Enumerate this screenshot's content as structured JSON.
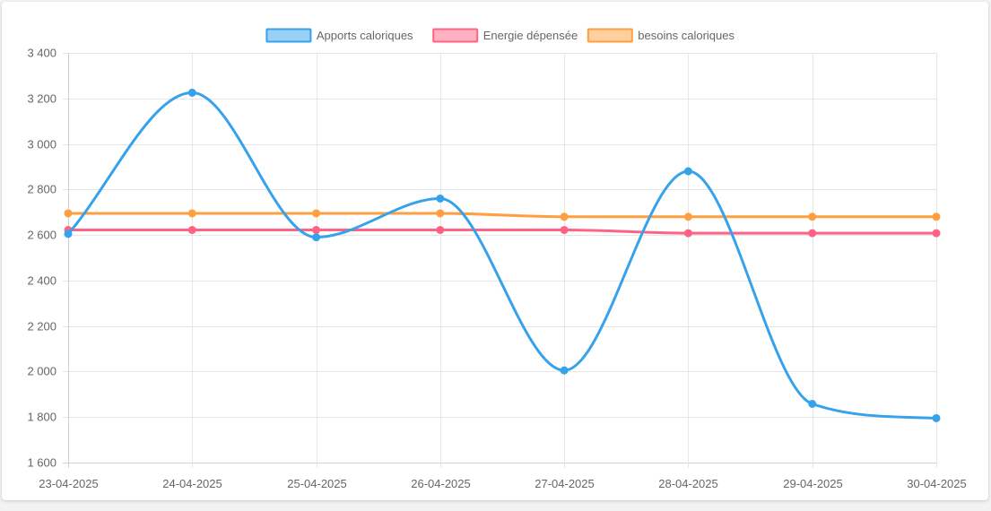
{
  "chart_data": {
    "type": "line",
    "title": "",
    "xlabel": "",
    "ylabel": "",
    "categories": [
      "23-04-2025",
      "24-04-2025",
      "25-04-2025",
      "26-04-2025",
      "27-04-2025",
      "28-04-2025",
      "29-04-2025",
      "30-04-2025"
    ],
    "ylim": [
      1600,
      3400
    ],
    "yticks": [
      "1 600",
      "1 800",
      "2 000",
      "2 200",
      "2 400",
      "2 600",
      "2 800",
      "3 000",
      "3 200",
      "3 400"
    ],
    "ytick_values": [
      1600,
      1800,
      2000,
      2200,
      2400,
      2600,
      2800,
      3000,
      3200,
      3400
    ],
    "grid": true,
    "legend_position": "top-center",
    "series": [
      {
        "name": "Apports caloriques",
        "color": "#36a2eb",
        "fill": "#9ad0f5",
        "values": [
          2605,
          3225,
          2590,
          2760,
          2005,
          2880,
          1858,
          1795
        ]
      },
      {
        "name": "Energie dépensée",
        "color": "#ff6384",
        "fill": "#ffb1c1",
        "values": [
          2622,
          2622,
          2622,
          2622,
          2622,
          2608,
          2608,
          2608
        ]
      },
      {
        "name": "besoins caloriques",
        "color": "#ff9f40",
        "fill": "#ffcf9f",
        "values": [
          2695,
          2695,
          2695,
          2695,
          2680,
          2680,
          2680,
          2680
        ]
      }
    ]
  }
}
